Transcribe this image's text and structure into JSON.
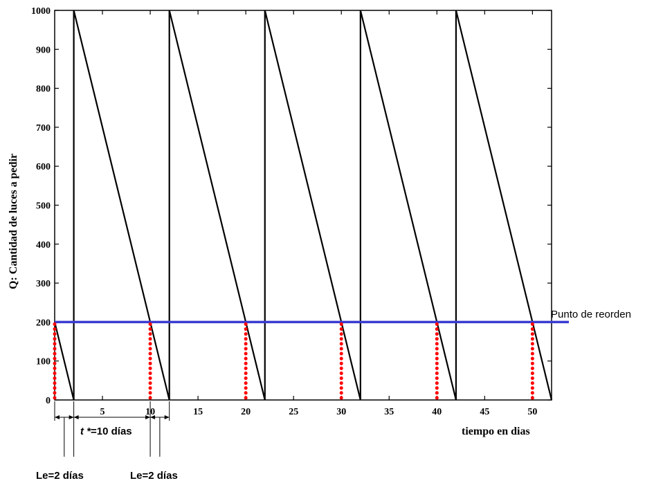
{
  "chart_data": {
    "type": "line",
    "title": "",
    "xlabel": "tiempo en dias",
    "ylabel": "Q: Cantidad de luces a pedir",
    "xlim": [
      0,
      52
    ],
    "ylim": [
      0,
      1000
    ],
    "x_ticks": [
      5,
      10,
      15,
      20,
      25,
      30,
      35,
      40,
      45,
      50
    ],
    "y_ticks": [
      0,
      100,
      200,
      300,
      400,
      500,
      600,
      700,
      800,
      900,
      1000
    ],
    "grid": false,
    "series": [
      {
        "name": "",
        "color": "#000000",
        "x": [
          0,
          2,
          2,
          12,
          12,
          22,
          22,
          32,
          32,
          42,
          42,
          52
        ],
        "y": [
          200,
          0,
          1000,
          0,
          1000,
          0,
          1000,
          0,
          1000,
          0,
          1000,
          0
        ]
      }
    ],
    "reorder_line": {
      "y": 200,
      "label": "Punto de reorden",
      "color": "#3b3bd1"
    },
    "reorder_markers": {
      "x": [
        0,
        10,
        20,
        30,
        40,
        50
      ],
      "y_from": 0,
      "y_to": 200,
      "color": "#ff0000"
    },
    "annotations": {
      "cycle_label": {
        "italic": "t *",
        "text": "=10 días",
        "x_from": 2,
        "x_to": 10
      },
      "lead_time_labels": [
        {
          "text": "Le=2 días",
          "x_from": 0,
          "x_to": 2
        },
        {
          "text": "Le=2 días",
          "x_from": 10,
          "x_to": 12
        }
      ]
    }
  }
}
